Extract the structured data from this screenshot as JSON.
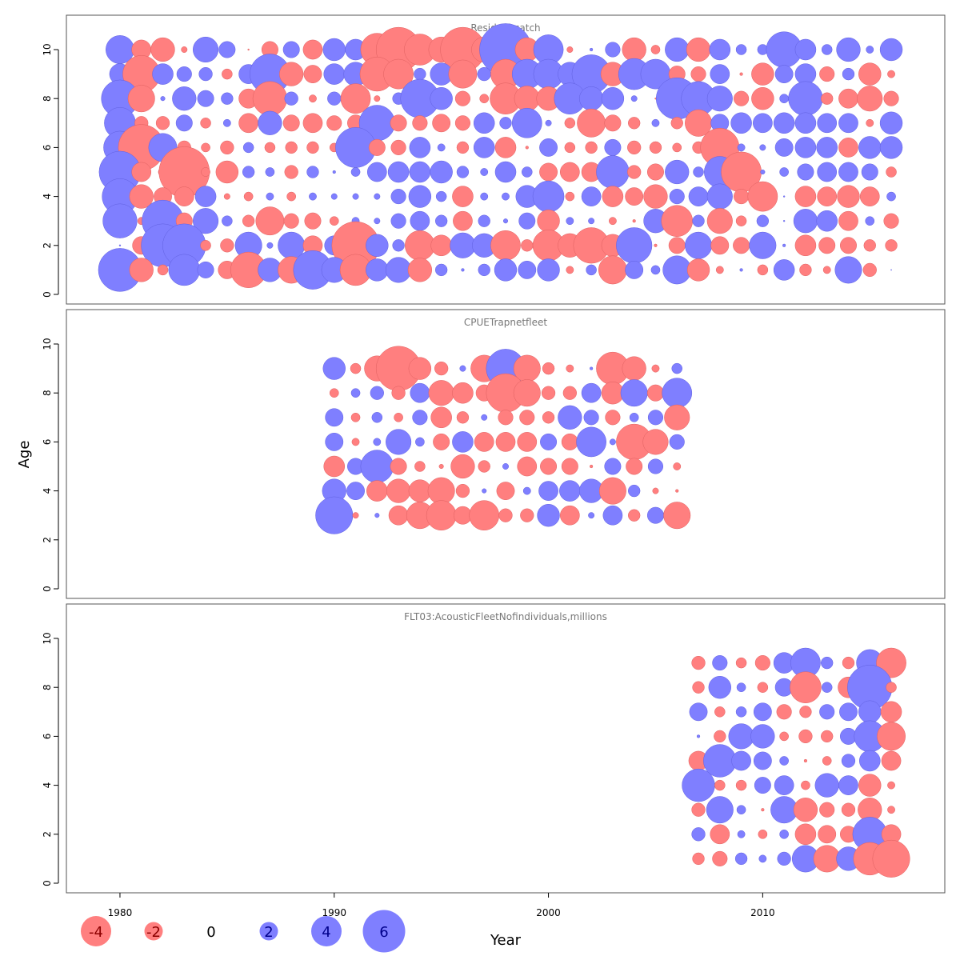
{
  "chart_data": {
    "type": "scatter",
    "subtype": "bubble",
    "xlabel": "Year",
    "ylabel": "Age",
    "xlim": [
      1977.5,
      2018.5
    ],
    "ylim": [
      0,
      11
    ],
    "x_ticks": [
      1980,
      1990,
      2000,
      2010
    ],
    "y_ticks": [
      0,
      2,
      4,
      6,
      8,
      10
    ],
    "colors": {
      "negative": "#ff7f7f",
      "positive": "#7f7fff"
    },
    "legend": {
      "position": "bottom-left",
      "items": [
        {
          "label": "-4",
          "value": -4
        },
        {
          "label": "-2",
          "value": -2
        },
        {
          "label": "0",
          "value": 0
        },
        {
          "label": "2",
          "value": 2
        },
        {
          "label": "4",
          "value": 4
        },
        {
          "label": "6",
          "value": 6
        }
      ]
    },
    "panels": [
      {
        "title": "Residual catch",
        "years": [
          1980,
          1981,
          1982,
          1983,
          1984,
          1985,
          1986,
          1987,
          1988,
          1989,
          1990,
          1991,
          1992,
          1993,
          1994,
          1995,
          1996,
          1997,
          1998,
          1999,
          2000,
          2001,
          2002,
          2003,
          2004,
          2005,
          2006,
          2007,
          2008,
          2009,
          2010,
          2011,
          2012,
          2013,
          2014,
          2015,
          2016
        ],
        "ages": [
          10,
          9,
          8,
          7,
          6,
          5,
          4,
          3,
          2,
          1
        ],
        "residuals": [
          [
            1.9,
            -1.3,
            -1.6,
            -0.4,
            1.7,
            1.1,
            -0.1,
            -1.1,
            1.1,
            -1.3,
            1.5,
            1.4,
            -2.2,
            -3.0,
            -2.1,
            -1.7,
            -3.0,
            -1.7,
            3.5,
            -1.6,
            2.0,
            -0.4,
            0.2,
            1.0,
            -1.6,
            -0.6,
            1.6,
            -1.6,
            1.4,
            0.7,
            0.7,
            2.4,
            1.4,
            0.7,
            1.6,
            0.5,
            1.5
          ],
          [
            1.4,
            -2.5,
            1.4,
            1.0,
            0.9,
            -0.7,
            1.3,
            2.7,
            -1.6,
            -1.2,
            1.4,
            1.6,
            -2.3,
            -2.0,
            0.8,
            1.5,
            -1.9,
            0.9,
            -2.0,
            2.0,
            2.0,
            1.6,
            2.6,
            -1.6,
            2.1,
            2.0,
            -1.1,
            -1.0,
            1.3,
            -0.2,
            -1.5,
            1.2,
            1.4,
            -1.0,
            0.8,
            -1.5,
            -0.5
          ],
          [
            2.5,
            -1.8,
            0.3,
            1.6,
            1.1,
            0.8,
            -1.3,
            -2.3,
            0.9,
            -0.5,
            0.9,
            -2.0,
            -0.4,
            0.8,
            2.6,
            1.5,
            -1.0,
            -0.6,
            -2.1,
            -1.7,
            -1.6,
            2.1,
            1.6,
            1.5,
            0.4,
            -0.1,
            2.8,
            2.3,
            1.7,
            -1.0,
            -1.5,
            0.6,
            2.3,
            -0.8,
            -1.3,
            -1.7,
            -1.0
          ],
          [
            2.1,
            -0.9,
            -0.9,
            1.1,
            -0.7,
            0.5,
            -1.3,
            1.6,
            -1.1,
            -1.3,
            -1.0,
            -1.1,
            2.4,
            -1.1,
            -1.0,
            -1.2,
            -1.0,
            1.4,
            0.8,
            2.0,
            0.4,
            -0.7,
            -1.9,
            -1.1,
            -0.8,
            0.5,
            -0.8,
            -1.8,
            1.2,
            1.4,
            1.3,
            1.4,
            1.4,
            1.3,
            1.3,
            -0.5,
            1.5
          ],
          [
            2.2,
            -3.1,
            1.9,
            -0.9,
            -0.6,
            -0.9,
            0.7,
            -0.7,
            -0.8,
            -0.8,
            -0.6,
            2.7,
            -1.1,
            -1.0,
            1.4,
            0.5,
            -0.8,
            1.4,
            -1.4,
            -0.2,
            1.2,
            -0.7,
            -0.8,
            1.1,
            -0.9,
            -0.8,
            -0.6,
            -0.8,
            -2.6,
            0.5,
            0.4,
            1.2,
            1.4,
            1.4,
            -1.3,
            1.5,
            1.5
          ],
          [
            2.8,
            -1.3,
            -0.6,
            -3.4,
            -0.6,
            -1.5,
            0.8,
            0.6,
            -0.9,
            0.8,
            0.2,
            0.6,
            1.3,
            1.4,
            1.4,
            1.5,
            0.8,
            0.5,
            1.4,
            0.7,
            -1.2,
            -1.3,
            -1.3,
            2.2,
            -0.9,
            -1.1,
            1.6,
            0.7,
            2.1,
            -2.7,
            0.3,
            0.6,
            1.1,
            1.3,
            1.3,
            1.1,
            -0.7
          ],
          [
            2.4,
            -1.6,
            -1.2,
            -1.3,
            1.4,
            -0.4,
            -0.6,
            0.5,
            -0.6,
            0.5,
            0.4,
            0.4,
            0.4,
            1.0,
            1.5,
            0.7,
            -1.4,
            0.5,
            0.5,
            1.5,
            2.1,
            -0.6,
            1.3,
            -1.4,
            -1.2,
            -1.6,
            1.0,
            1.3,
            1.7,
            -1.0,
            -2.0,
            0.1,
            -1.4,
            -1.3,
            -1.5,
            -1.3,
            0.6
          ],
          [
            2.3,
            -0.5,
            2.8,
            -1.1,
            1.7,
            0.7,
            -0.8,
            -1.9,
            -1.0,
            -1.1,
            -0.6,
            0.5,
            0.4,
            1.0,
            1.3,
            0.8,
            -1.3,
            0.8,
            0.3,
            1.1,
            -1.5,
            0.5,
            0.4,
            -0.5,
            -0.2,
            1.6,
            -2.1,
            0.8,
            -1.7,
            -0.7,
            0.8,
            0.1,
            1.6,
            1.4,
            -1.3,
            0.6,
            -1.0
          ],
          [
            0.1,
            -1.2,
            2.9,
            2.9,
            -0.7,
            -0.9,
            1.8,
            0.4,
            1.8,
            -1.3,
            1.3,
            -3.2,
            1.5,
            0.8,
            -2.0,
            -1.4,
            1.7,
            1.6,
            -2.0,
            -0.8,
            -2.1,
            -1.6,
            -2.4,
            -1.5,
            2.4,
            -0.2,
            -1.1,
            1.8,
            -1.2,
            -1.1,
            1.8,
            0.2,
            -1.4,
            -1.1,
            -1.1,
            -0.8,
            -0.8
          ],
          [
            2.9,
            -1.6,
            -0.7,
            2.1,
            1.1,
            -1.2,
            -2.4,
            1.6,
            -1.8,
            2.6,
            1.7,
            -2.1,
            1.5,
            1.7,
            -1.6,
            0.8,
            0.2,
            0.8,
            1.5,
            1.2,
            1.5,
            -0.5,
            0.7,
            -1.9,
            1.2,
            0.6,
            1.9,
            -1.5,
            -0.5,
            0.2,
            -0.7,
            1.4,
            -0.8,
            -0.5,
            1.8,
            -0.9,
            0.0
          ]
        ]
      },
      {
        "title": "CPUETrapnetfleet",
        "years": [
          1990,
          1991,
          1992,
          1993,
          1994,
          1995,
          1996,
          1997,
          1998,
          1999,
          2000,
          2001,
          2002,
          2003,
          2004,
          2005,
          2006
        ],
        "ages": [
          9,
          8,
          7,
          6,
          5,
          4,
          3
        ],
        "residuals": [
          [
            1.5,
            -0.7,
            -1.7,
            -3.0,
            -1.5,
            -0.9,
            0.4,
            -1.8,
            2.6,
            -1.8,
            -0.8,
            -0.5,
            0.2,
            -2.2,
            -1.6,
            -0.5,
            0.7
          ],
          [
            -0.6,
            0.6,
            0.9,
            -0.9,
            1.3,
            -1.7,
            -1.4,
            -1.1,
            -2.6,
            -1.8,
            -0.9,
            -0.9,
            1.3,
            -1.5,
            1.8,
            -1.1,
            2.0
          ],
          [
            1.2,
            -0.6,
            0.7,
            -0.6,
            1.0,
            -1.4,
            -0.8,
            0.4,
            -1.0,
            -1.0,
            -0.8,
            1.6,
            1.0,
            -1.0,
            0.6,
            1.0,
            -1.7
          ],
          [
            1.2,
            -0.5,
            0.5,
            1.7,
            0.6,
            -1.1,
            1.4,
            -1.3,
            -1.3,
            -1.3,
            1.1,
            -1.1,
            2.0,
            0.4,
            -2.4,
            -1.7,
            1.0
          ],
          [
            -1.4,
            1.1,
            2.2,
            -1.1,
            -0.7,
            -0.3,
            -1.6,
            -0.8,
            0.4,
            -1.3,
            -1.1,
            -1.1,
            -0.2,
            1.1,
            -1.1,
            1.0,
            -0.5
          ],
          [
            1.6,
            1.2,
            -1.4,
            -1.6,
            -1.5,
            -1.8,
            -0.9,
            0.3,
            -1.2,
            0.5,
            1.3,
            1.4,
            1.6,
            -1.8,
            0.8,
            -0.4,
            -0.2
          ],
          [
            2.5,
            -0.4,
            0.3,
            -1.3,
            -1.8,
            -2.0,
            -1.2,
            -2.0,
            -0.9,
            -0.9,
            1.5,
            -1.3,
            0.4,
            1.3,
            -0.8,
            1.1,
            -1.8
          ]
        ]
      },
      {
        "title": "FLT03:AcousticFleetNofindividuals,millions",
        "years": [
          2007,
          2008,
          2009,
          2010,
          2011,
          2012,
          2013,
          2014,
          2015,
          2016
        ],
        "ages": [
          9,
          8,
          7,
          6,
          5,
          4,
          3,
          2,
          1
        ],
        "residuals": [
          [
            -0.9,
            1.0,
            -0.7,
            -1.0,
            1.4,
            2.0,
            0.8,
            -0.8,
            1.8,
            -2.0
          ],
          [
            -0.8,
            1.5,
            0.6,
            -0.7,
            1.2,
            -2.1,
            0.7,
            -1.4,
            3.0,
            -0.7
          ],
          [
            1.2,
            -0.7,
            0.7,
            1.2,
            -1.0,
            -0.8,
            1.0,
            1.2,
            1.5,
            -1.4
          ],
          [
            0.2,
            -0.8,
            1.7,
            1.6,
            -0.6,
            -0.9,
            -0.8,
            1.1,
            2.1,
            -1.9
          ],
          [
            -1.3,
            2.2,
            1.3,
            1.2,
            0.6,
            -0.2,
            -0.6,
            0.9,
            1.4,
            -1.3
          ],
          [
            2.2,
            -0.7,
            -0.7,
            1.1,
            1.3,
            -0.6,
            1.6,
            1.3,
            -1.5,
            -0.5
          ],
          [
            -0.9,
            1.8,
            0.6,
            -0.2,
            1.8,
            -1.6,
            -1.0,
            -0.9,
            -1.6,
            -0.5
          ],
          [
            0.9,
            -1.3,
            0.5,
            -0.6,
            0.6,
            -1.4,
            -1.2,
            -1.1,
            2.3,
            -1.3
          ],
          [
            -0.8,
            -1.0,
            0.8,
            0.5,
            0.9,
            1.8,
            -1.8,
            1.6,
            -2.2,
            -2.5
          ]
        ]
      }
    ]
  }
}
